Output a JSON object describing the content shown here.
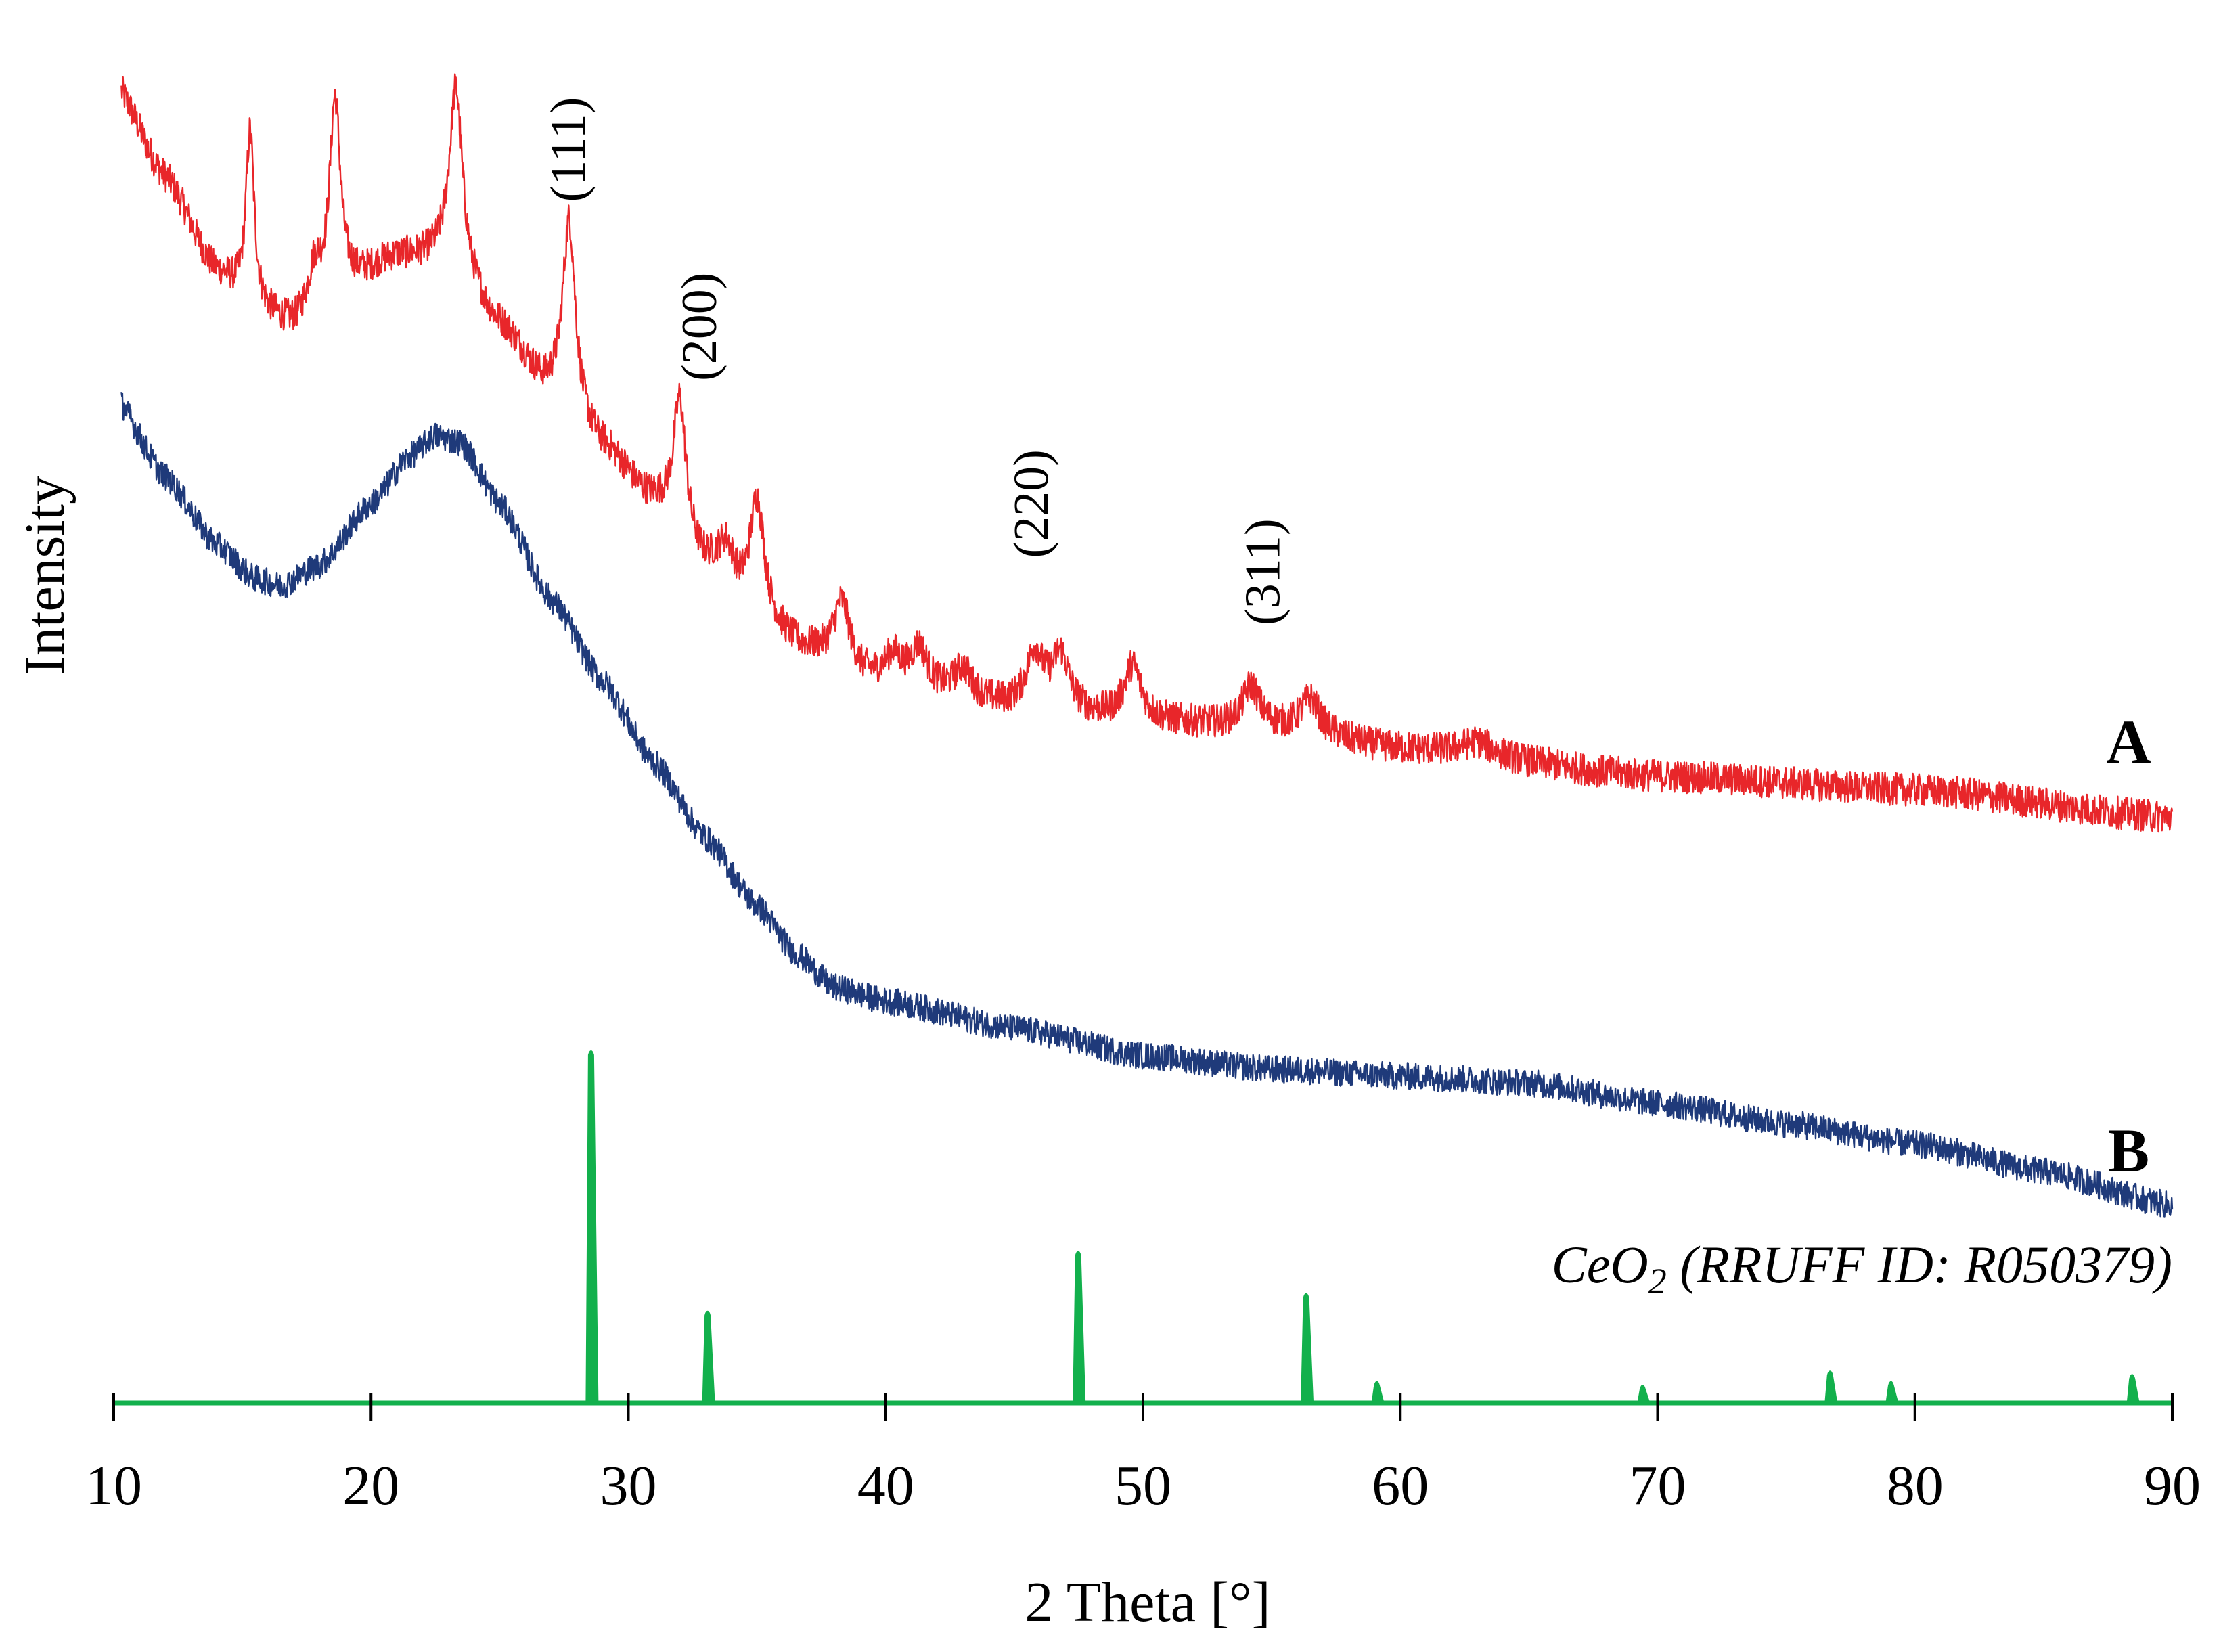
{
  "chart_data": {
    "type": "line",
    "title": "",
    "xlabel": "2 Theta [°]",
    "ylabel": "Intensity",
    "xlim": [
      10,
      90
    ],
    "xticks": [
      10,
      20,
      30,
      40,
      50,
      60,
      70,
      80,
      90
    ],
    "ylim": [
      0,
      100
    ],
    "y_units": "arbitrary (curves vertically offset)",
    "grid": false,
    "colors": {
      "A": "#e8262a",
      "B": "#1f3a7a",
      "reference": "#12b04c",
      "axis": "#12b04c"
    },
    "series": [
      {
        "name": "A",
        "label": "A",
        "color": "#e8262a",
        "noise": 1.2,
        "baseline": [
          [
            10,
            97
          ],
          [
            12,
            90
          ],
          [
            14,
            83
          ],
          [
            15.5,
            80
          ],
          [
            17,
            79
          ],
          [
            19,
            82
          ],
          [
            21,
            84
          ],
          [
            23,
            84
          ],
          [
            25,
            79
          ],
          [
            27,
            74
          ],
          [
            29,
            70
          ],
          [
            31,
            66
          ],
          [
            33,
            61
          ],
          [
            35,
            57
          ],
          [
            37,
            55
          ],
          [
            39,
            53
          ],
          [
            42,
            52
          ],
          [
            45,
            51
          ],
          [
            50,
            50
          ],
          [
            55,
            49.5
          ],
          [
            60,
            48
          ],
          [
            70,
            46
          ],
          [
            80,
            45
          ],
          [
            90,
            43
          ]
        ],
        "peaks": [
          {
            "x": 15.3,
            "height": 13,
            "width": 0.2
          },
          {
            "x": 17.8,
            "height": 3,
            "width": 0.3
          },
          {
            "x": 18.6,
            "height": 14,
            "width": 0.25
          },
          {
            "x": 23.3,
            "height": 13,
            "width": 0.3
          },
          {
            "x": 27.7,
            "height": 14,
            "width": 0.3
          },
          {
            "x": 32.0,
            "height": 10,
            "width": 0.3
          },
          {
            "x": 33.8,
            "height": 3,
            "width": 0.4
          },
          {
            "x": 35.0,
            "height": 9,
            "width": 0.35
          },
          {
            "x": 38.3,
            "height": 5,
            "width": 0.4
          },
          {
            "x": 40.3,
            "height": 2,
            "width": 0.4
          },
          {
            "x": 41.3,
            "height": 3,
            "width": 0.4
          },
          {
            "x": 43.0,
            "height": 2,
            "width": 0.4
          },
          {
            "x": 45.8,
            "height": 4,
            "width": 0.4
          },
          {
            "x": 46.8,
            "height": 4,
            "width": 0.4
          },
          {
            "x": 49.6,
            "height": 4,
            "width": 0.4
          },
          {
            "x": 54.2,
            "height": 3,
            "width": 0.4
          },
          {
            "x": 56.5,
            "height": 2.5,
            "width": 0.45
          },
          {
            "x": 63.0,
            "height": 1,
            "width": 0.8
          }
        ]
      },
      {
        "name": "B",
        "label": "B",
        "color": "#1f3a7a",
        "noise": 1.0,
        "baseline": [
          [
            10,
            74
          ],
          [
            12,
            68
          ],
          [
            14,
            63
          ],
          [
            15.5,
            60.5
          ],
          [
            16.5,
            60
          ],
          [
            18,
            61.5
          ],
          [
            20,
            66
          ],
          [
            21.5,
            69.5
          ],
          [
            22.5,
            71
          ],
          [
            23.5,
            70.5
          ],
          [
            25,
            66
          ],
          [
            27,
            59
          ],
          [
            29,
            53
          ],
          [
            31,
            47
          ],
          [
            33,
            41.5
          ],
          [
            35,
            36.5
          ],
          [
            36.5,
            33
          ],
          [
            38,
            30.5
          ],
          [
            40,
            29.5
          ],
          [
            45,
            27.5
          ],
          [
            50,
            25.5
          ],
          [
            55,
            24.5
          ],
          [
            60,
            24
          ],
          [
            65,
            23.5
          ],
          [
            70,
            22
          ],
          [
            75,
            20.5
          ],
          [
            80,
            19
          ],
          [
            85,
            17
          ],
          [
            90,
            14.5
          ]
        ],
        "peaks": []
      }
    ],
    "reference": {
      "name": "CeO2 (RRUFF ID: R050379)",
      "label_main": "CeO",
      "label_sub": "2",
      "label_rest": " (RRUFF ID: R050379)",
      "color": "#12b04c",
      "peaks": [
        {
          "x": 28.55,
          "height": 100
        },
        {
          "x": 33.08,
          "height": 26
        },
        {
          "x": 47.48,
          "height": 43
        },
        {
          "x": 56.34,
          "height": 31
        },
        {
          "x": 59.09,
          "height": 6
        },
        {
          "x": 69.42,
          "height": 5
        },
        {
          "x": 76.7,
          "height": 9
        },
        {
          "x": 79.07,
          "height": 6
        },
        {
          "x": 88.44,
          "height": 8
        }
      ]
    },
    "annotations": [
      {
        "text": "(111)",
        "x": 28.3,
        "y": 92
      },
      {
        "text": "(200)",
        "x": 33.4,
        "y": 79
      },
      {
        "text": "(220)",
        "x": 46.3,
        "y": 66
      },
      {
        "text": "(311)",
        "x": 55.3,
        "y": 61
      }
    ],
    "series_labels": [
      {
        "text": "A",
        "x": 88.3,
        "y": 47
      },
      {
        "text": "B",
        "x": 88.3,
        "y": 17
      }
    ]
  }
}
